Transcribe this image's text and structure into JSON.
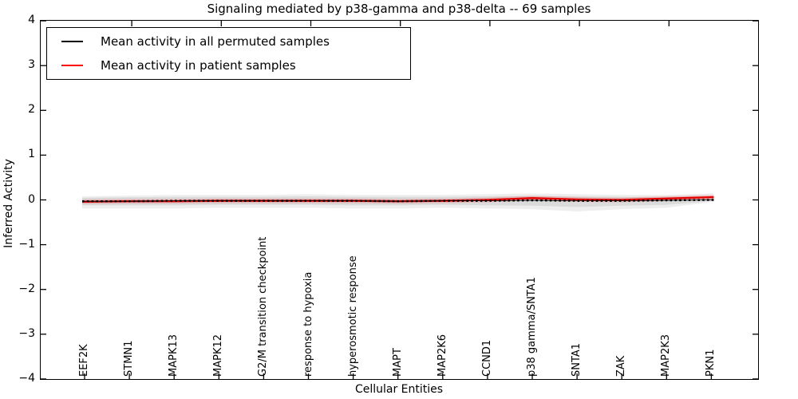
{
  "figure": {
    "title": "Signaling mediated by p38-gamma and p38-delta -- 69 samples",
    "xlabel": "Cellular Entities",
    "ylabel": "Inferred Activity"
  },
  "legend": {
    "items": [
      {
        "label": "Mean activity in all permuted samples",
        "color": "#000000"
      },
      {
        "label": "Mean activity in patient samples",
        "color": "#ff0000"
      }
    ]
  },
  "chart_data": {
    "type": "line",
    "title": "Signaling mediated by p38-gamma and p38-delta -- 69 samples",
    "xlabel": "Cellular Entities",
    "ylabel": "Inferred Activity",
    "ylim": [
      -4,
      4
    ],
    "yticks": [
      4,
      3,
      2,
      1,
      0,
      -1,
      -2,
      -3,
      -4
    ],
    "grid": false,
    "legend_position": "upper left",
    "categories": [
      "EEF2K",
      "STMN1",
      "MAPK13",
      "MAPK12",
      "G2/M transition checkpoint",
      "response to hypoxia",
      "hyperosmotic response",
      "MAPT",
      "MAP2K6",
      "CCND1",
      "p38 gamma/SNTA1",
      "SNTA1",
      "ZAK",
      "MAP2K3",
      "PKN1"
    ],
    "series": [
      {
        "name": "Mean activity in all permuted samples",
        "color": "#000000",
        "style": "dashed",
        "values": [
          -0.03,
          -0.03,
          -0.02,
          -0.02,
          -0.02,
          -0.02,
          -0.02,
          -0.03,
          -0.02,
          -0.02,
          -0.01,
          -0.02,
          -0.02,
          -0.01,
          0.0
        ]
      },
      {
        "name": "Mean activity in patient samples",
        "color": "#e60000",
        "style": "solid",
        "values": [
          -0.04,
          -0.03,
          -0.03,
          -0.02,
          -0.02,
          -0.02,
          -0.02,
          -0.03,
          -0.02,
          0.0,
          0.04,
          0.01,
          0.0,
          0.03,
          0.06
        ]
      }
    ],
    "band": {
      "name": "permuted samples spread",
      "color": "#cccccc",
      "upper": [
        0.05,
        0.06,
        0.07,
        0.07,
        0.07,
        0.08,
        0.07,
        0.07,
        0.07,
        0.08,
        0.09,
        0.08,
        0.07,
        0.07,
        0.09
      ],
      "lower": [
        -0.12,
        -0.12,
        -0.12,
        -0.11,
        -0.11,
        -0.11,
        -0.12,
        -0.12,
        -0.11,
        -0.12,
        -0.13,
        -0.16,
        -0.13,
        -0.11,
        -0.03
      ]
    }
  }
}
